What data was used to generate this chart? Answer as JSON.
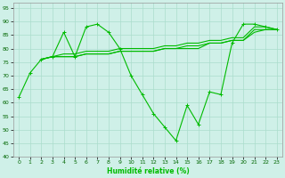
{
  "xlabel": "Humidité relative (%)",
  "xlim": [
    0,
    23
  ],
  "ylim": [
    40,
    97
  ],
  "yticks": [
    40,
    45,
    50,
    55,
    60,
    65,
    70,
    75,
    80,
    85,
    90,
    95
  ],
  "xticks": [
    0,
    1,
    2,
    3,
    4,
    5,
    6,
    7,
    8,
    9,
    10,
    11,
    12,
    13,
    14,
    15,
    16,
    17,
    18,
    19,
    20,
    21,
    22,
    23
  ],
  "bg_color": "#cff0e8",
  "grid_color": "#aaddcc",
  "line_color": "#00bb00",
  "line1": [
    62,
    71,
    76,
    77,
    86,
    77,
    88,
    89,
    86,
    80,
    70,
    63,
    56,
    51,
    46,
    59,
    52,
    64,
    63,
    82,
    89,
    89,
    88,
    87
  ],
  "line3": [
    76,
    77,
    78,
    78,
    79,
    79,
    79,
    80,
    80,
    80,
    80,
    81,
    81,
    82,
    82,
    83,
    83,
    84,
    84,
    88,
    88,
    87
  ],
  "line4": [
    76,
    77,
    77,
    77,
    78,
    78,
    78,
    79,
    79,
    79,
    79,
    80,
    80,
    80,
    80,
    82,
    82,
    83,
    83,
    86,
    87,
    87
  ],
  "line5": [
    76,
    77,
    77,
    77,
    78,
    78,
    78,
    79,
    79,
    79,
    79,
    80,
    80,
    81,
    81,
    82,
    82,
    83,
    83,
    87,
    87,
    87
  ],
  "line3_start": 2,
  "line4_start": 2,
  "line5_start": 2
}
